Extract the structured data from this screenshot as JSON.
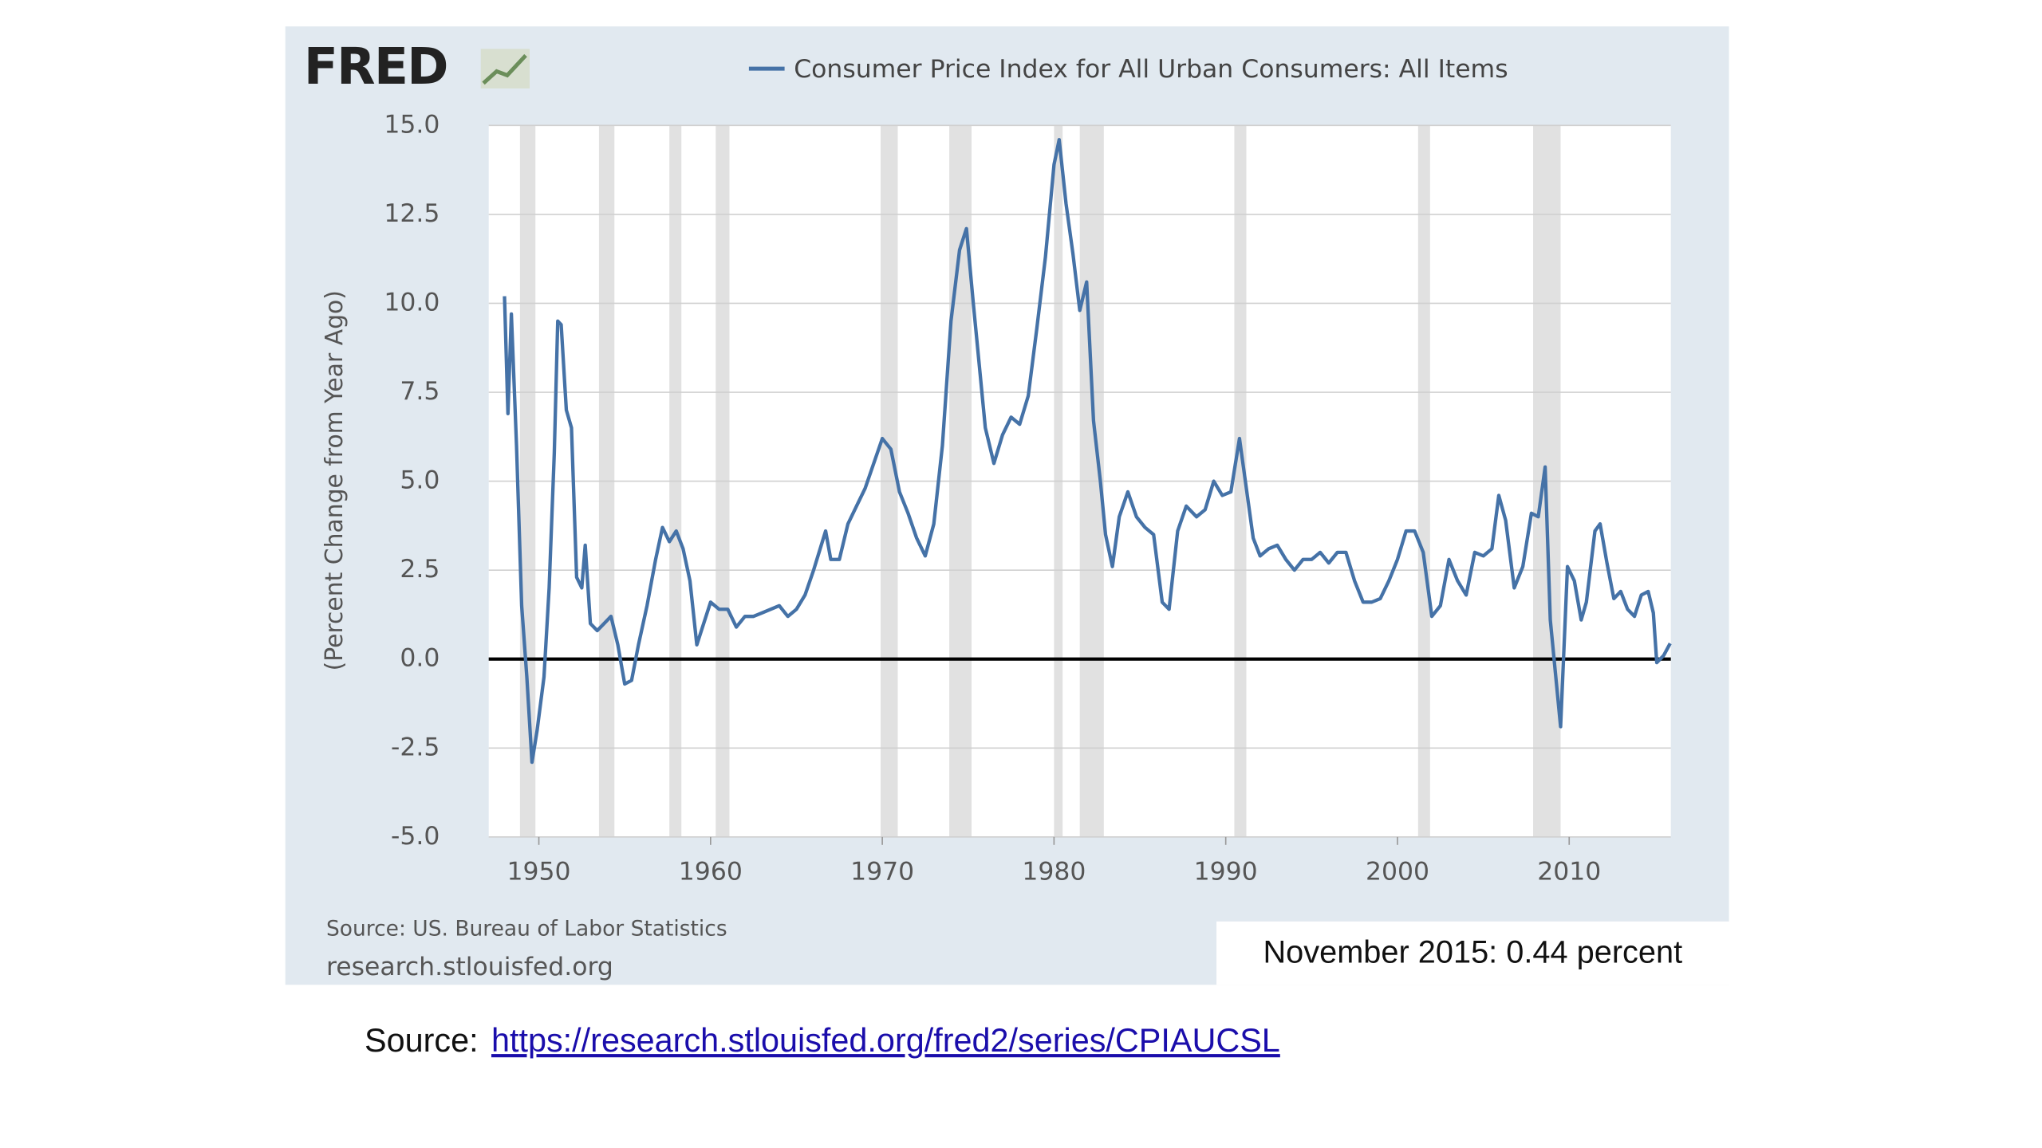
{
  "chart_data": {
    "type": "line",
    "logo": "FRED",
    "ylabel": "(Percent Change from Year Ago)",
    "source": "Source: US. Bureau of Labor Statistics",
    "website": "research.stlouisfed.org",
    "annotation": "November 2015: 0.44 percent",
    "x": [
      1948.0,
      1948.2,
      1948.4,
      1948.7,
      1949.0,
      1949.3,
      1949.6,
      1949.9,
      1950.3,
      1950.6,
      1950.9,
      1951.1,
      1951.3,
      1951.6,
      1951.9,
      1952.2,
      1952.5,
      1952.7,
      1953.0,
      1953.4,
      1953.8,
      1954.2,
      1954.6,
      1955.0,
      1955.4,
      1955.8,
      1956.3,
      1956.8,
      1957.2,
      1957.6,
      1958.0,
      1958.4,
      1958.8,
      1959.2,
      1959.6,
      1960.0,
      1960.5,
      1961.0,
      1961.5,
      1962.0,
      1962.5,
      1963.0,
      1963.5,
      1964.0,
      1964.5,
      1965.0,
      1965.5,
      1966.0,
      1966.7,
      1967.0,
      1967.5,
      1968.0,
      1968.5,
      1969.0,
      1969.5,
      1970.0,
      1970.5,
      1971.0,
      1971.5,
      1972.0,
      1972.5,
      1973.0,
      1973.5,
      1974.0,
      1974.5,
      1974.9,
      1975.3,
      1975.7,
      1976.0,
      1976.5,
      1977.0,
      1977.5,
      1978.0,
      1978.5,
      1979.0,
      1979.5,
      1980.0,
      1980.3,
      1980.7,
      1981.1,
      1981.5,
      1981.9,
      1982.3,
      1982.7,
      1983.0,
      1983.4,
      1983.8,
      1984.3,
      1984.8,
      1985.3,
      1985.8,
      1986.3,
      1986.7,
      1987.2,
      1987.7,
      1988.3,
      1988.8,
      1989.3,
      1989.8,
      1990.3,
      1990.8,
      1991.2,
      1991.6,
      1992.0,
      1992.5,
      1993.0,
      1993.5,
      1994.0,
      1994.5,
      1995.0,
      1995.5,
      1996.0,
      1996.5,
      1997.0,
      1997.5,
      1998.0,
      1998.5,
      1999.0,
      1999.5,
      2000.0,
      2000.5,
      2001.0,
      2001.5,
      2002.0,
      2002.5,
      2003.0,
      2003.5,
      2004.0,
      2004.5,
      2005.0,
      2005.5,
      2005.9,
      2006.3,
      2006.8,
      2007.3,
      2007.8,
      2008.2,
      2008.6,
      2008.9,
      2009.2,
      2009.5,
      2009.9,
      2010.3,
      2010.7,
      2011.0,
      2011.5,
      2011.8,
      2012.2,
      2012.6,
      2013.0,
      2013.4,
      2013.8,
      2014.2,
      2014.6,
      2014.9,
      2015.1,
      2015.5,
      2015.88
    ],
    "series": [
      {
        "name": "Consumer Price Index for All Urban Consumers: All Items",
        "color": "#4572a7",
        "values": [
          10.2,
          6.9,
          9.7,
          6.0,
          1.5,
          -0.5,
          -2.9,
          -2.0,
          -0.5,
          2.0,
          5.8,
          9.5,
          9.4,
          7.0,
          6.5,
          2.3,
          2.0,
          3.2,
          1.0,
          0.8,
          1.0,
          1.2,
          0.4,
          -0.7,
          -0.6,
          0.4,
          1.5,
          2.8,
          3.7,
          3.3,
          3.6,
          3.1,
          2.2,
          0.4,
          1.0,
          1.6,
          1.4,
          1.4,
          0.9,
          1.2,
          1.2,
          1.3,
          1.4,
          1.5,
          1.2,
          1.4,
          1.8,
          2.5,
          3.6,
          2.8,
          2.8,
          3.8,
          4.3,
          4.8,
          5.5,
          6.2,
          5.9,
          4.7,
          4.1,
          3.4,
          2.9,
          3.8,
          6.0,
          9.5,
          11.5,
          12.1,
          10.0,
          8.0,
          6.5,
          5.5,
          6.3,
          6.8,
          6.6,
          7.4,
          9.3,
          11.3,
          13.9,
          14.6,
          12.8,
          11.4,
          9.8,
          10.6,
          6.7,
          5.0,
          3.5,
          2.6,
          4.0,
          4.7,
          4.0,
          3.7,
          3.5,
          1.6,
          1.4,
          3.6,
          4.3,
          4.0,
          4.2,
          5.0,
          4.6,
          4.7,
          6.2,
          4.8,
          3.4,
          2.9,
          3.1,
          3.2,
          2.8,
          2.5,
          2.8,
          2.8,
          3.0,
          2.7,
          3.0,
          3.0,
          2.2,
          1.6,
          1.6,
          1.7,
          2.2,
          2.8,
          3.6,
          3.6,
          3.0,
          1.2,
          1.5,
          2.8,
          2.2,
          1.8,
          3.0,
          2.9,
          3.1,
          4.6,
          3.9,
          2.0,
          2.6,
          4.1,
          4.0,
          5.4,
          1.1,
          -0.4,
          -1.9,
          2.6,
          2.2,
          1.1,
          1.6,
          3.6,
          3.8,
          2.7,
          1.7,
          1.9,
          1.4,
          1.2,
          1.8,
          1.9,
          1.3,
          -0.1,
          0.1,
          0.44
        ]
      }
    ],
    "recessions": [
      [
        1948.9,
        1949.8
      ],
      [
        1953.5,
        1954.4
      ],
      [
        1957.6,
        1958.3
      ],
      [
        1960.3,
        1961.1
      ],
      [
        1969.9,
        1970.9
      ],
      [
        1973.9,
        1975.2
      ],
      [
        1980.0,
        1980.5
      ],
      [
        1981.5,
        1982.9
      ],
      [
        1990.5,
        1991.2
      ],
      [
        2001.2,
        2001.9
      ],
      [
        2007.9,
        2009.5
      ]
    ],
    "recession_color": "#e1e1e1",
    "xlim": [
      1947.08,
      2015.92
    ],
    "xticks": [
      1950,
      1960,
      1970,
      1980,
      1990,
      2000,
      2010
    ],
    "ylim": [
      -5,
      15
    ],
    "yticks": [
      {
        "value": -5,
        "label": "-5.0"
      },
      {
        "value": -2.5,
        "label": "-2.5"
      },
      {
        "value": 0,
        "label": "0.0"
      },
      {
        "value": 2.5,
        "label": "2.5"
      },
      {
        "value": 5,
        "label": "5.0"
      },
      {
        "value": 7.5,
        "label": "7.5"
      },
      {
        "value": 10,
        "label": "10.0"
      },
      {
        "value": 12.5,
        "label": "12.5"
      },
      {
        "value": 15,
        "label": "15.0"
      }
    ],
    "grid": true
  },
  "footer": {
    "label": "Source:",
    "link": "https://research.stlouisfed.org/fred2/series/CPIAUCSL"
  }
}
